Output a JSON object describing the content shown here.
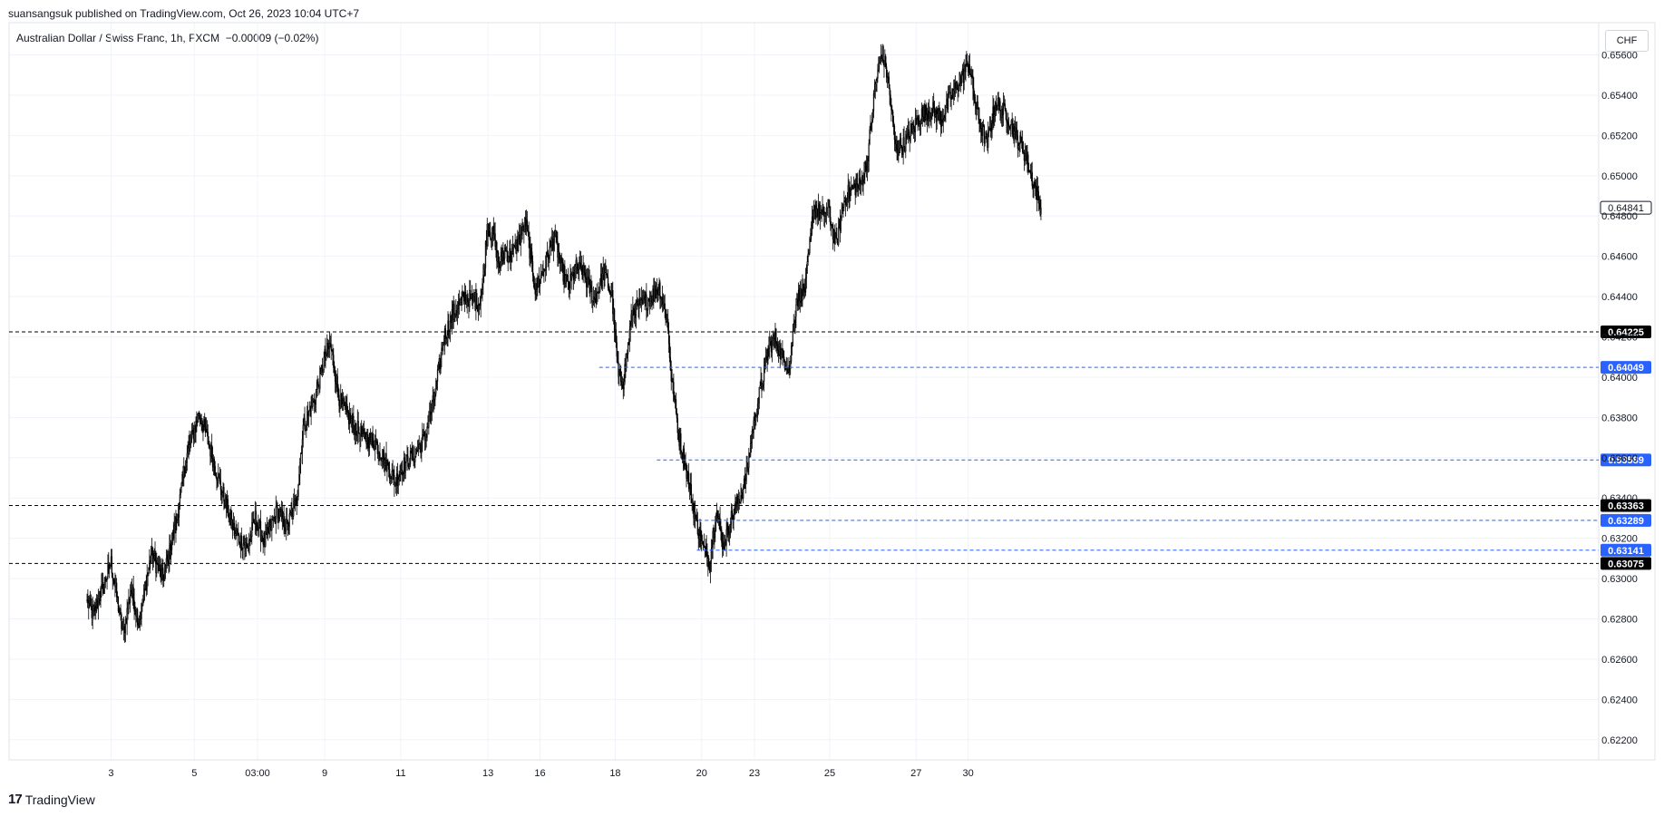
{
  "header": {
    "publish_text": "suansangsuk published on TradingView.com, Oct 26, 2023 10:04 UTC+7",
    "symbol_text": "Australian Dollar / Swiss Franc, 1h, FXCM  −0.00009 (−0.02%)",
    "currency": "CHF"
  },
  "footer": {
    "brand": "TradingView",
    "logo_glyph": "17"
  },
  "colors": {
    "candle": "#000000",
    "black_line": "#000000",
    "blue_line": "#2962ff",
    "grid": "#f0f3fa"
  },
  "chart_data": {
    "type": "candlestick",
    "ylim": [
      0.621,
      0.6576
    ],
    "y_ticks": [
      "0.62200",
      "0.62400",
      "0.62600",
      "0.62800",
      "0.63000",
      "0.63200",
      "0.63400",
      "0.63600",
      "0.63800",
      "0.64000",
      "0.64200",
      "0.64400",
      "0.64600",
      "0.64800",
      "0.65000",
      "0.65200",
      "0.65400",
      "0.65600"
    ],
    "x_ticks": [
      {
        "label": "3",
        "i": 30
      },
      {
        "label": "5",
        "i": 134
      },
      {
        "label": "03:00",
        "i": 213
      },
      {
        "label": "9",
        "i": 297
      },
      {
        "label": "11",
        "i": 392
      },
      {
        "label": "13",
        "i": 501
      },
      {
        "label": "16",
        "i": 566
      },
      {
        "label": "18",
        "i": 660
      },
      {
        "label": "20",
        "i": 768
      },
      {
        "label": "23",
        "i": 834
      },
      {
        "label": "25",
        "i": 928
      },
      {
        "label": "27",
        "i": 1036
      },
      {
        "label": "30",
        "i": 1101
      }
    ],
    "n_candles": 1135,
    "path": [
      [
        0,
        0.6288
      ],
      [
        8,
        0.6282
      ],
      [
        30,
        0.6308
      ],
      [
        45,
        0.6272
      ],
      [
        55,
        0.6295
      ],
      [
        65,
        0.6278
      ],
      [
        80,
        0.6312
      ],
      [
        95,
        0.63
      ],
      [
        110,
        0.6325
      ],
      [
        125,
        0.6362
      ],
      [
        140,
        0.6382
      ],
      [
        150,
        0.637
      ],
      [
        165,
        0.6348
      ],
      [
        185,
        0.6322
      ],
      [
        200,
        0.6315
      ],
      [
        210,
        0.633
      ],
      [
        222,
        0.6318
      ],
      [
        238,
        0.6334
      ],
      [
        250,
        0.6325
      ],
      [
        262,
        0.634
      ],
      [
        270,
        0.6375
      ],
      [
        285,
        0.639
      ],
      [
        297,
        0.641
      ],
      [
        304,
        0.6416
      ],
      [
        316,
        0.6388
      ],
      [
        330,
        0.6378
      ],
      [
        345,
        0.637
      ],
      [
        360,
        0.6368
      ],
      [
        376,
        0.6356
      ],
      [
        385,
        0.6348
      ],
      [
        395,
        0.6356
      ],
      [
        410,
        0.6362
      ],
      [
        422,
        0.637
      ],
      [
        434,
        0.639
      ],
      [
        446,
        0.642
      ],
      [
        458,
        0.6432
      ],
      [
        472,
        0.644
      ],
      [
        490,
        0.6437
      ],
      [
        495,
        0.6448
      ],
      [
        500,
        0.6475
      ],
      [
        508,
        0.647
      ],
      [
        515,
        0.6455
      ],
      [
        522,
        0.6463
      ],
      [
        530,
        0.646
      ],
      [
        540,
        0.6468
      ],
      [
        548,
        0.6477
      ],
      [
        560,
        0.6444
      ],
      [
        568,
        0.645
      ],
      [
        576,
        0.6461
      ],
      [
        584,
        0.647
      ],
      [
        592,
        0.6455
      ],
      [
        602,
        0.6445
      ],
      [
        612,
        0.6455
      ],
      [
        622,
        0.645
      ],
      [
        634,
        0.6438
      ],
      [
        646,
        0.6452
      ],
      [
        656,
        0.644
      ],
      [
        664,
        0.64
      ],
      [
        670,
        0.6398
      ],
      [
        682,
        0.6433
      ],
      [
        700,
        0.6438
      ],
      [
        715,
        0.6445
      ],
      [
        725,
        0.6428
      ],
      [
        730,
        0.64
      ],
      [
        740,
        0.637
      ],
      [
        750,
        0.6352
      ],
      [
        760,
        0.633
      ],
      [
        770,
        0.6315
      ],
      [
        778,
        0.6308
      ],
      [
        786,
        0.6335
      ],
      [
        795,
        0.6316
      ],
      [
        805,
        0.633
      ],
      [
        815,
        0.634
      ],
      [
        823,
        0.6348
      ],
      [
        832,
        0.6375
      ],
      [
        842,
        0.6395
      ],
      [
        852,
        0.6415
      ],
      [
        860,
        0.642
      ],
      [
        868,
        0.641
      ],
      [
        878,
        0.6405
      ],
      [
        886,
        0.6438
      ],
      [
        898,
        0.6445
      ],
      [
        908,
        0.6485
      ],
      [
        918,
        0.648
      ],
      [
        926,
        0.6484
      ],
      [
        936,
        0.6465
      ],
      [
        946,
        0.6488
      ],
      [
        956,
        0.6494
      ],
      [
        966,
        0.6495
      ],
      [
        975,
        0.6508
      ],
      [
        985,
        0.6545
      ],
      [
        993,
        0.6562
      ],
      [
        1000,
        0.655
      ],
      [
        1010,
        0.6515
      ],
      [
        1020,
        0.6515
      ],
      [
        1030,
        0.6522
      ],
      [
        1042,
        0.653
      ],
      [
        1055,
        0.6533
      ],
      [
        1068,
        0.6528
      ],
      [
        1080,
        0.654
      ],
      [
        1092,
        0.6548
      ],
      [
        1102,
        0.6556
      ],
      [
        1108,
        0.654
      ],
      [
        1116,
        0.6525
      ],
      [
        1125,
        0.6516
      ],
      [
        1135,
        0.6536
      ],
      [
        1150,
        0.653
      ],
      [
        1160,
        0.652
      ],
      [
        1170,
        0.6513
      ],
      [
        1180,
        0.65
      ],
      [
        1192,
        0.64841
      ]
    ],
    "levels": [
      {
        "value": 0.64225,
        "label": "0.64225",
        "style": "black",
        "from_i": 0
      },
      {
        "value": 0.64049,
        "label": "0.64049",
        "style": "blue",
        "from_i": 640
      },
      {
        "value": 0.63589,
        "label": "0.63589",
        "style": "blue",
        "from_i": 712
      },
      {
        "value": 0.63363,
        "label": "0.63363",
        "style": "black",
        "from_i": 0
      },
      {
        "value": 0.63289,
        "label": "0.63289",
        "style": "blue",
        "from_i": 764
      },
      {
        "value": 0.63141,
        "label": "0.63141",
        "style": "blue",
        "from_i": 762
      },
      {
        "value": 0.63075,
        "label": "0.63075",
        "style": "black",
        "from_i": 0
      }
    ],
    "last_price": {
      "value": 0.64841,
      "label": "0.64841"
    }
  }
}
